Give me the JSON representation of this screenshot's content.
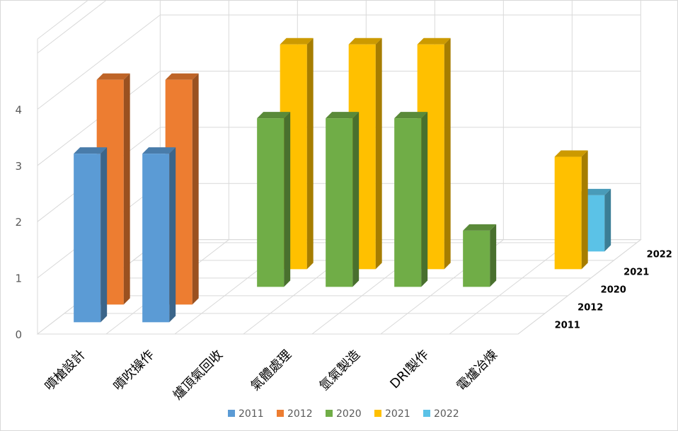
{
  "chart_data": {
    "type": "bar",
    "subtype": "3d-column",
    "title": "",
    "xlabel": "",
    "ylabel": "",
    "ylim": [
      0,
      4
    ],
    "yticks": [
      "0",
      "1",
      "2",
      "3",
      "4"
    ],
    "grid": true,
    "legend_position": "bottom",
    "categories": [
      "噴槍設計",
      "噴吹操作",
      "爐頂氣回收",
      "氣體處理",
      "氫氣製造",
      "DRI製作",
      "電爐冶煉"
    ],
    "series": [
      {
        "name": "2011",
        "color": "#5B9BD5",
        "values": [
          3,
          3,
          0,
          0,
          0,
          0,
          0
        ]
      },
      {
        "name": "2012",
        "color": "#ED7D31",
        "values": [
          4,
          4,
          0,
          0,
          0,
          0,
          0
        ]
      },
      {
        "name": "2020",
        "color": "#70AD47",
        "values": [
          0,
          0,
          3,
          3,
          3,
          1,
          0
        ]
      },
      {
        "name": "2021",
        "color": "#FFC000",
        "values": [
          0,
          0,
          4,
          4,
          4,
          0,
          2
        ]
      },
      {
        "name": "2022",
        "color": "#5BC2E7",
        "values": [
          0,
          0,
          0,
          0,
          0,
          0,
          1
        ]
      }
    ]
  }
}
